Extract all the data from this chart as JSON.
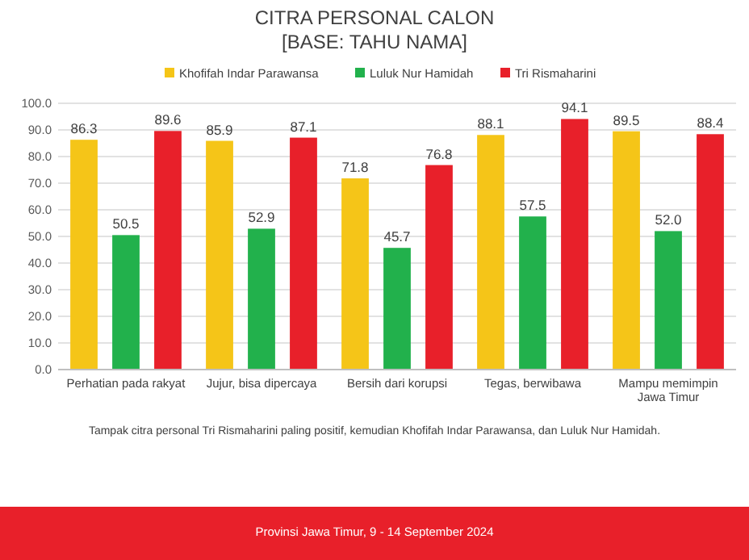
{
  "chart_data": {
    "type": "bar",
    "title": "CITRA PERSONAL CALON",
    "subtitle": "[BASE: TAHU NAMA]",
    "categories": [
      "Perhatian pada rakyat",
      "Jujur, bisa dipercaya",
      "Bersih dari korupsi",
      "Tegas, berwibawa",
      "Mampu memimpin Jawa Timur"
    ],
    "series": [
      {
        "name": "Khofifah Indar Parawansa",
        "color": "#f5c518",
        "values": [
          86.3,
          85.9,
          71.8,
          88.1,
          89.5
        ],
        "value_labels": [
          "86.3",
          "85.9",
          "71.8",
          "88.1",
          "89.5"
        ]
      },
      {
        "name": "Luluk Nur Hamidah",
        "color": "#22b14c",
        "values": [
          50.5,
          52.9,
          45.7,
          57.5,
          52.0
        ],
        "value_labels": [
          "50.5",
          "52.9",
          "45.7",
          "57.5",
          "52.0"
        ]
      },
      {
        "name": "Tri Rismaharini",
        "color": "#e8202a",
        "values": [
          89.6,
          87.1,
          76.8,
          94.1,
          88.4
        ],
        "value_labels": [
          "89.6",
          "87.1",
          "76.8",
          "94.1",
          "88.4"
        ]
      }
    ],
    "ylim": [
      0,
      100
    ],
    "yticks": [
      {
        "value": 0,
        "label": "0.0"
      },
      {
        "value": 10,
        "label": "10.0"
      },
      {
        "value": 20,
        "label": "20.0"
      },
      {
        "value": 30,
        "label": "30.0"
      },
      {
        "value": 40,
        "label": "40.0"
      },
      {
        "value": 50,
        "label": "50.0"
      },
      {
        "value": 60,
        "label": "60.0"
      },
      {
        "value": 70,
        "label": "70.0"
      },
      {
        "value": 80,
        "label": "80.0"
      },
      {
        "value": 90,
        "label": "90.0"
      },
      {
        "value": 100,
        "label": "100.0"
      }
    ],
    "grid": "y",
    "legend": "top",
    "annotations": [
      "Tampak citra personal Tri Rismaharini paling positif, kemudian Khofifah Indar Parawansa, dan Luluk Nur Hamidah.",
      "Provinsi Jawa Timur, 9 - 14 September 2024"
    ]
  }
}
